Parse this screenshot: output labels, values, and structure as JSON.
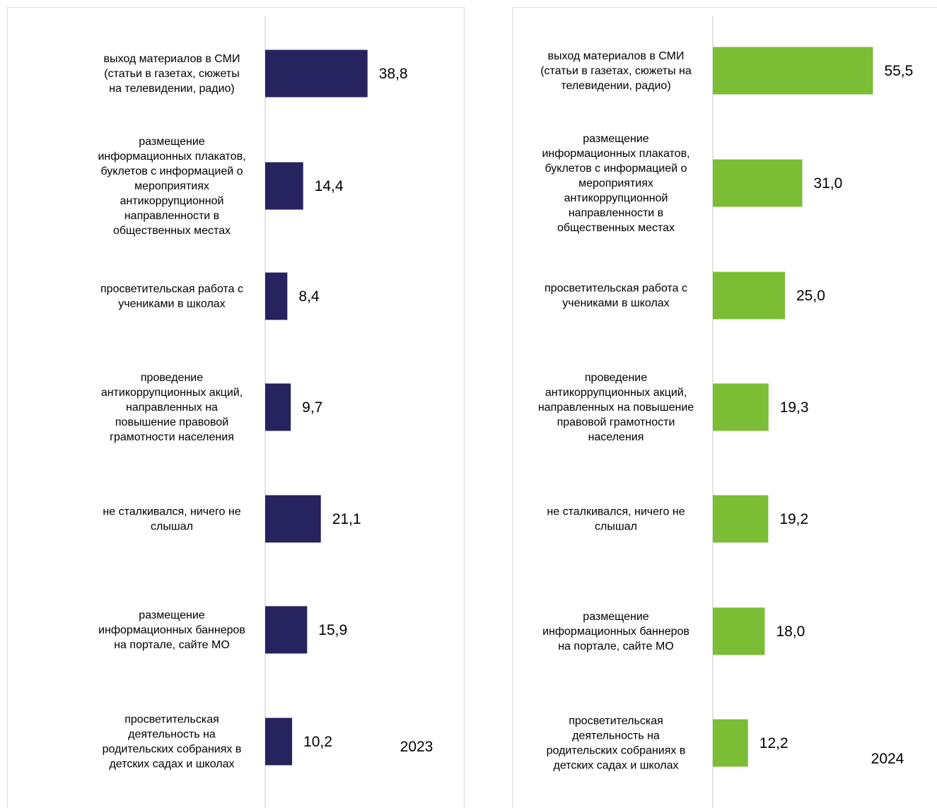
{
  "chart_data": [
    {
      "type": "bar",
      "orientation": "horizontal",
      "year_label": "2023",
      "color": "#27235f",
      "categories": [
        [
          "выход материалов  в СМИ",
          "(статьи в газетах, сюжеты",
          "на телевидении, радио)"
        ],
        [
          "размещение",
          "информационных плакатов,",
          "буклетов с информацией о",
          "мероприятиях",
          "антикоррупционной",
          "направленности в",
          "общественных местах"
        ],
        [
          "просветительская работа с",
          "учениками в школах"
        ],
        [
          "проведение",
          "антикоррупционных акций,",
          "направленных на",
          "повышение правовой",
          "грамотности населения"
        ],
        [
          "не сталкивался, ничего не",
          "слышал"
        ],
        [
          "размещение",
          "информационных баннеров",
          "на портале, сайте МО"
        ],
        [
          "просветительская",
          "деятельность на",
          "родительских собраниях в",
          "детских садах и школах"
        ]
      ],
      "values": [
        38.8,
        14.4,
        8.4,
        9.7,
        21.1,
        15.9,
        10.2
      ],
      "value_labels": [
        "38,8",
        "14,4",
        "8,4",
        "9,7",
        "21,1",
        "15,9",
        "10,2"
      ]
    },
    {
      "type": "bar",
      "orientation": "horizontal",
      "year_label": "2024",
      "color": "#7bbd35",
      "categories": [
        [
          "выход материалов  в СМИ",
          "(статьи в газетах, сюжеты на",
          "телевидении, радио)"
        ],
        [
          "размещение",
          "информационных плакатов,",
          "буклетов с информацией о",
          "мероприятиях",
          "антикоррупционной",
          "направленности в",
          "общественных местах"
        ],
        [
          "просветительская работа с",
          "учениками в школах"
        ],
        [
          "проведение",
          "антикоррупционных акций,",
          "направленных на повышение",
          "правовой грамотности",
          "населения"
        ],
        [
          "не сталкивался, ничего не",
          "слышал"
        ],
        [
          "размещение",
          "информационных баннеров",
          "на портале, сайте МО"
        ],
        [
          "просветительская",
          "деятельность на",
          "родительских собраниях в",
          "детских садах и школах"
        ]
      ],
      "values": [
        55.5,
        31.0,
        25.0,
        19.3,
        19.2,
        18.0,
        12.2
      ],
      "value_labels": [
        "55,5",
        "31,0",
        "25,0",
        "19,3",
        "19,2",
        "18,0",
        "12,2"
      ]
    }
  ]
}
